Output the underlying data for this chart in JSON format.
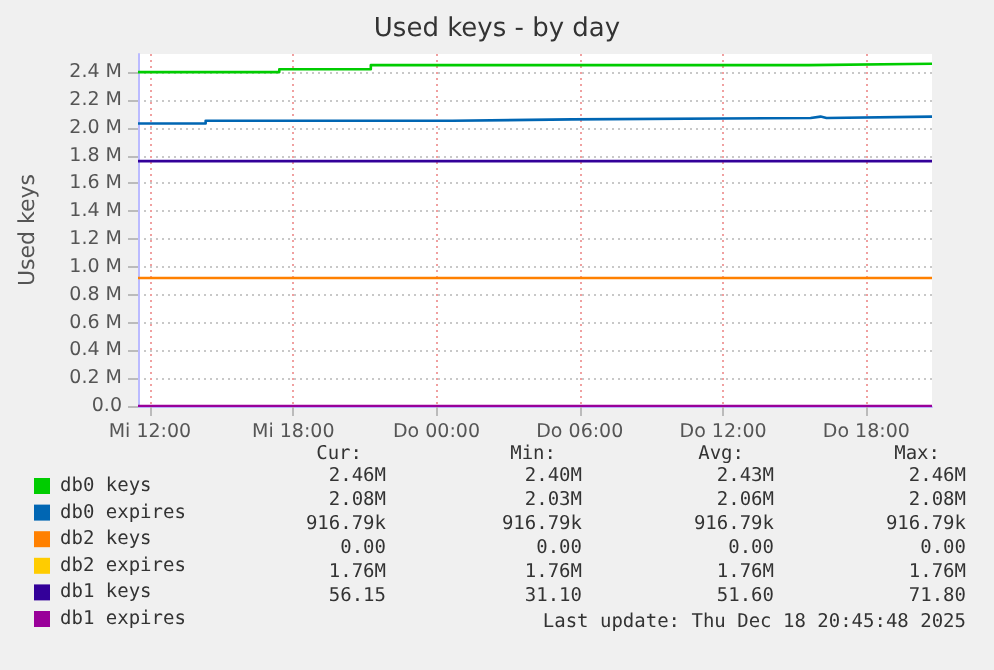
{
  "chart_data": {
    "type": "step",
    "title": "Used keys - by day",
    "ylabel": "Used keys",
    "xlim": [
      "2025-12-17T11:30",
      "2025-12-18T20:45"
    ],
    "xticks": [
      {
        "value": "2025-12-17T12:00",
        "label": "Mi 12:00"
      },
      {
        "value": "2025-12-17T18:00",
        "label": "Mi 18:00"
      },
      {
        "value": "2025-12-18T00:00",
        "label": "Do 00:00"
      },
      {
        "value": "2025-12-18T06:00",
        "label": "Do 06:00"
      },
      {
        "value": "2025-12-18T12:00",
        "label": "Do 12:00"
      },
      {
        "value": "2025-12-18T18:00",
        "label": "Do 18:00"
      }
    ],
    "ylim": [
      0,
      2530000
    ],
    "yticks": [
      {
        "value": 0,
        "label": "0.0"
      },
      {
        "value": 200000,
        "label": "0.2 M"
      },
      {
        "value": 400000,
        "label": "0.4 M"
      },
      {
        "value": 600000,
        "label": "0.6 M"
      },
      {
        "value": 800000,
        "label": "0.8 M"
      },
      {
        "value": 1000000,
        "label": "1.0 M"
      },
      {
        "value": 1200000,
        "label": "1.2 M"
      },
      {
        "value": 1400000,
        "label": "1.4 M"
      },
      {
        "value": 1600000,
        "label": "1.6 M"
      },
      {
        "value": 1800000,
        "label": "1.8 M"
      },
      {
        "value": 2000000,
        "label": "2.0 M"
      },
      {
        "value": 2200000,
        "label": "2.2 M"
      },
      {
        "value": 2400000,
        "label": "2.4 M"
      }
    ],
    "series": [
      {
        "name": "db0 keys",
        "color": "#00cc00",
        "x": [
          "2025-12-17T11:30",
          "2025-12-17T17:25",
          "2025-12-17T21:15",
          "2025-12-18T15:35",
          "2025-12-18T20:45"
        ],
        "values": [
          2400000,
          2420000,
          2450000,
          2460000,
          2460000
        ]
      },
      {
        "name": "db0 expires",
        "color": "#0066b3",
        "x": [
          "2025-12-17T11:30",
          "2025-12-17T14:20",
          "2025-12-18T00:40",
          "2025-12-18T05:40",
          "2025-12-18T15:40",
          "2025-12-18T16:05",
          "2025-12-18T16:20",
          "2025-12-18T20:45"
        ],
        "values": [
          2030000,
          2050000,
          2060000,
          2070000,
          2080000,
          2070000,
          2080000,
          2080000
        ]
      },
      {
        "name": "db2 keys",
        "color": "#ff8000",
        "x": [
          "2025-12-17T11:30",
          "2025-12-18T20:45"
        ],
        "values": [
          920000,
          920000
        ]
      },
      {
        "name": "db2 expires",
        "color": "#ffcc00"
      },
      {
        "name": "db1 keys",
        "color": "#330099",
        "x": [
          "2025-12-17T11:30",
          "2025-12-18T20:45"
        ],
        "values": [
          1760000,
          1760000
        ]
      },
      {
        "name": "db1 expires",
        "color": "#990099",
        "x": [
          "2025-12-17T11:30",
          "2025-12-18T20:45"
        ],
        "values": [
          0,
          0
        ]
      }
    ],
    "annotations": [
      "Cur:",
      "Min:",
      "Avg:",
      "Max:",
      "2.46M",
      "2.40M",
      "2.43M",
      "2.46M",
      "2.08M",
      "2.03M",
      "2.06M",
      "2.08M",
      "916.79k",
      "916.79k",
      "916.79k",
      "916.79k",
      "0.00",
      "0.00",
      "0.00",
      "0.00",
      "1.76M",
      "1.76M",
      "1.76M",
      "1.76M",
      "56.15",
      "31.10",
      "51.60",
      "71.80",
      "Last update: Thu Dec 18 20:45:48 2025"
    ],
    "grid": true,
    "legend": "bottom left",
    "line_style": "solid",
    "marker": "none"
  }
}
